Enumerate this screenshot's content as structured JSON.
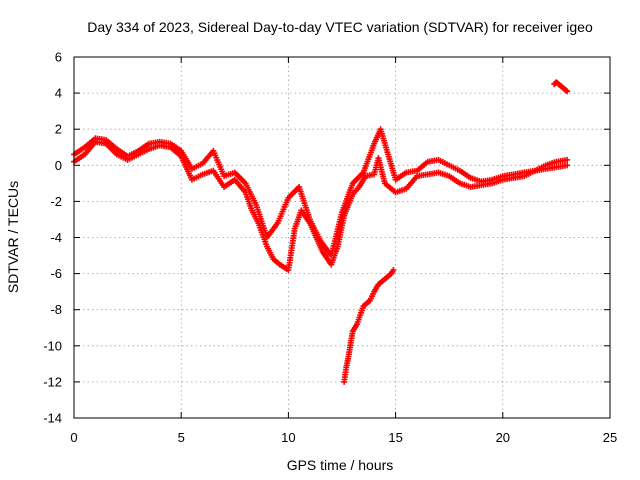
{
  "chart_data": {
    "type": "scatter",
    "title": "Day 334 of 2023, Sidereal Day-to-day VTEC variation (SDTVAR) for receiver igeo",
    "xlabel": "GPS time / hours",
    "ylabel": "SDTVAR / TECUs",
    "xlim": [
      0,
      25
    ],
    "ylim": [
      -14,
      6
    ],
    "xticks": [
      0,
      5,
      10,
      15,
      20,
      25
    ],
    "yticks": [
      -14,
      -12,
      -10,
      -8,
      -6,
      -4,
      -2,
      0,
      2,
      4,
      6
    ],
    "xtick_labels": [
      "0",
      "5",
      "10",
      "15",
      "20",
      "25"
    ],
    "ytick_labels": [
      "-14",
      "-12",
      "-10",
      "-8",
      "-6",
      "-4",
      "-2",
      "0",
      "2",
      "4",
      "6"
    ],
    "grid": true,
    "marker": "+",
    "series": [
      {
        "name": "main-trace",
        "color": "#ff0000",
        "x": [
          0.0,
          0.5,
          1.0,
          1.5,
          2.0,
          2.5,
          3.0,
          3.5,
          4.0,
          4.5,
          5.0,
          5.5,
          6.0,
          6.5,
          7.0,
          7.5,
          8.0,
          8.3,
          8.6,
          9.0,
          9.3,
          9.6,
          10.0,
          10.3,
          10.6,
          11.0,
          11.3,
          11.6,
          12.0,
          12.3,
          12.6,
          13.0,
          13.3,
          13.6,
          14.0,
          14.2,
          14.5,
          15.0,
          15.5,
          16.0,
          16.5,
          17.0,
          17.5,
          18.0,
          18.5,
          19.0,
          19.5,
          20.0,
          20.5,
          21.0,
          21.5,
          22.0,
          22.5,
          23.0
        ],
        "y": [
          0.2,
          0.6,
          1.3,
          1.2,
          0.6,
          0.3,
          0.6,
          0.9,
          1.1,
          1.0,
          0.5,
          -0.8,
          -0.5,
          -0.3,
          -1.2,
          -0.8,
          -1.5,
          -2.5,
          -3.2,
          -4.5,
          -5.2,
          -5.5,
          -5.8,
          -3.5,
          -2.5,
          -3.2,
          -4.0,
          -4.8,
          -5.5,
          -4.5,
          -2.8,
          -1.6,
          -1.2,
          -0.6,
          -0.5,
          0.4,
          -1.0,
          -1.5,
          -1.3,
          -0.6,
          -0.5,
          -0.4,
          -0.6,
          -1.0,
          -1.2,
          -1.1,
          -1.0,
          -0.8,
          -0.7,
          -0.6,
          -0.3,
          -0.2,
          -0.1,
          0.0
        ]
      },
      {
        "name": "upper-band",
        "color": "#ff0000",
        "x": [
          0.0,
          0.5,
          1.0,
          1.5,
          2.0,
          2.5,
          3.0,
          3.5,
          4.0,
          4.5,
          5.0,
          5.5,
          6.0,
          6.5,
          7.0,
          7.5,
          8.0,
          8.5,
          9.0,
          9.5,
          10.0,
          10.5,
          11.0,
          11.5,
          12.0,
          12.5,
          13.0,
          13.5,
          14.0,
          14.3,
          15.0,
          15.5,
          16.0,
          16.5,
          17.0,
          17.5,
          18.0,
          18.5,
          19.0,
          19.5,
          20.0,
          20.5,
          21.0,
          21.5,
          22.0,
          22.5,
          23.0
        ],
        "y": [
          0.6,
          1.0,
          1.5,
          1.4,
          0.9,
          0.5,
          0.8,
          1.2,
          1.3,
          1.2,
          0.8,
          -0.2,
          0.1,
          0.8,
          -0.6,
          -0.4,
          -1.0,
          -2.2,
          -4.0,
          -3.2,
          -1.8,
          -1.2,
          -3.0,
          -4.2,
          -5.0,
          -2.6,
          -1.0,
          -0.4,
          1.2,
          2.0,
          -0.8,
          -0.4,
          -0.3,
          0.2,
          0.3,
          0.0,
          -0.3,
          -0.7,
          -0.9,
          -0.8,
          -0.6,
          -0.5,
          -0.4,
          -0.3,
          0.0,
          0.2,
          0.3
        ]
      },
      {
        "name": "lower-branch",
        "color": "#ff0000",
        "x": [
          12.6,
          12.7,
          12.8,
          13.0,
          13.2,
          13.5,
          13.8,
          14.0,
          14.2,
          14.5,
          14.8,
          14.9
        ],
        "y": [
          -12.0,
          -11.2,
          -10.6,
          -9.2,
          -8.8,
          -7.8,
          -7.5,
          -7.0,
          -6.6,
          -6.3,
          -6.0,
          -5.8
        ]
      },
      {
        "name": "late-cluster",
        "color": "#ff0000",
        "x": [
          22.4,
          22.5,
          22.6,
          22.7,
          22.8,
          22.9,
          23.0
        ],
        "y": [
          4.5,
          4.6,
          4.5,
          4.4,
          4.3,
          4.2,
          4.1
        ]
      }
    ]
  }
}
